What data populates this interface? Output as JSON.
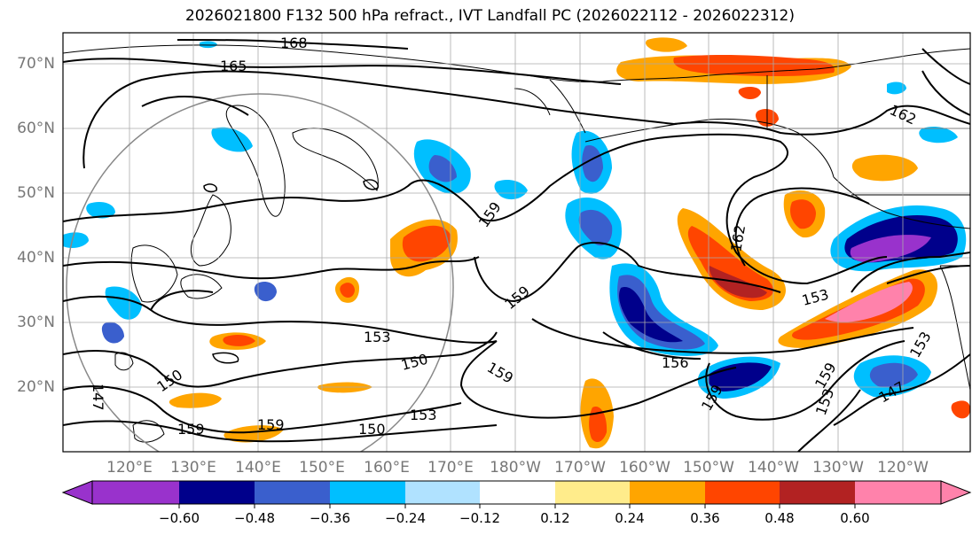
{
  "title": "2026021800 F132 500 hPa refract., IVT Landfall PC (2026022112 - 2026022312)",
  "lat_labels": [
    "70°N",
    "60°N",
    "50°N",
    "40°N",
    "30°N",
    "20°N"
  ],
  "lon_labels": [
    "120°E",
    "130°E",
    "140°E",
    "150°E",
    "160°E",
    "170°E",
    "180°W",
    "170°W",
    "160°W",
    "150°W",
    "140°W",
    "130°W",
    "120°W"
  ],
  "contour_labels": [
    "168",
    "165",
    "162",
    "162",
    "159",
    "159",
    "159",
    "159",
    "156",
    "153",
    "153",
    "153",
    "150",
    "150",
    "150",
    "147",
    "159",
    "159",
    "153",
    "159",
    "153",
    "147"
  ],
  "colorbar": {
    "tick_labels": [
      "−0.60",
      "−0.48",
      "−0.36",
      "−0.24",
      "−0.12",
      "0.12",
      "0.24",
      "0.36",
      "0.48",
      "0.60"
    ],
    "colors": [
      "#9932cc",
      "#00008b",
      "#3a5fcd",
      "#00bfff",
      "#b0e2ff",
      "#ffffff",
      "#ffec8b",
      "#ffa500",
      "#ff4500",
      "#b22222",
      "#ff82ab"
    ]
  },
  "legend_colors": {
    "strong_negative": "#9932cc",
    "negative": "#3a5fcd",
    "weak_negative": "#00bfff",
    "weak_positive": "#ffa500",
    "positive": "#ff4500",
    "strong_positive": "#ff82ab"
  }
}
